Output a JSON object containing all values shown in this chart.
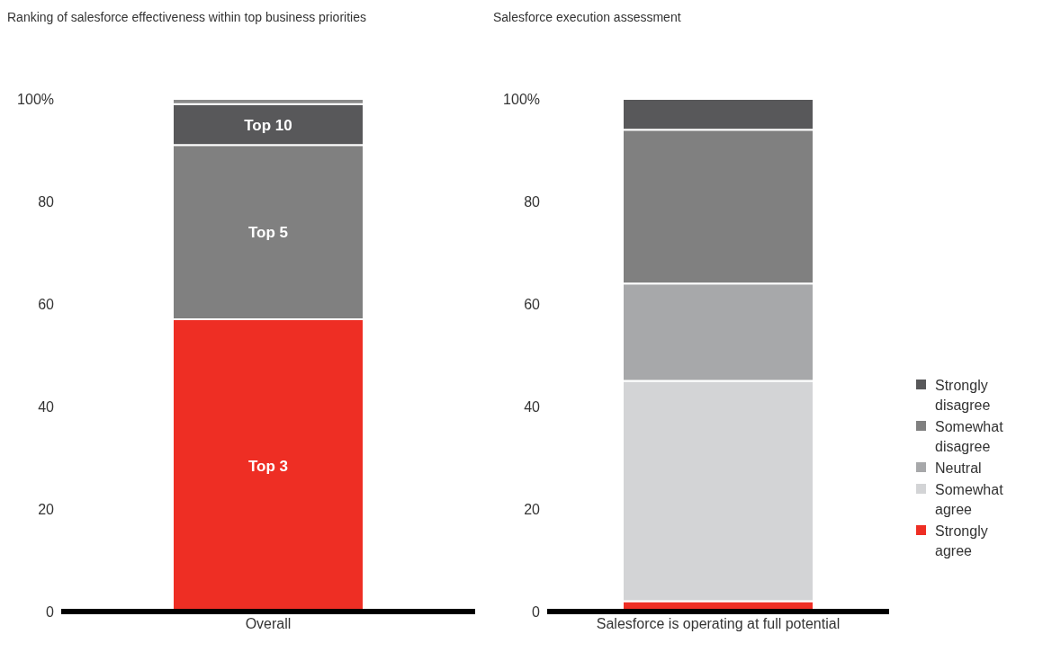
{
  "chart_data": [
    {
      "type": "bar",
      "title": "Ranking of salesforce effectiveness within top business priorities",
      "categories": [
        "Overall"
      ],
      "stacked": true,
      "legend": false,
      "grid": false,
      "ylim": [
        0,
        100
      ],
      "yticks": [
        0,
        20,
        40,
        60,
        80,
        {
          "value": 100,
          "label": "100%"
        }
      ],
      "series": [
        {
          "name": "Top 3",
          "color": "#ee2e24",
          "values": [
            57
          ]
        },
        {
          "name": "Top 5",
          "color": "#808080",
          "values": [
            34
          ]
        },
        {
          "name": "Top 10",
          "color": "#58585a",
          "values": [
            8
          ]
        },
        {
          "color": "#8a8a8a",
          "values": [
            1
          ]
        }
      ]
    },
    {
      "type": "bar",
      "title": "Salesforce execution assessment",
      "categories": [
        "Salesforce is operating at full potential"
      ],
      "stacked": true,
      "legend": "right",
      "grid": false,
      "ylim": [
        0,
        100
      ],
      "yticks": [
        0,
        20,
        40,
        60,
        80,
        {
          "value": 100,
          "label": "100%"
        }
      ],
      "series": [
        {
          "name": "Strongly agree",
          "color": "#ee2e24",
          "values": [
            2
          ]
        },
        {
          "name": "Somewhat agree",
          "color": "#d3d4d6",
          "values": [
            43
          ]
        },
        {
          "name": "Neutral",
          "color": "#a7a8aa",
          "values": [
            19
          ]
        },
        {
          "name": "Somewhat disagree",
          "color": "#808080",
          "values": [
            30
          ]
        },
        {
          "name": "Strongly disagree",
          "color": "#58585a",
          "values": [
            6
          ]
        }
      ]
    }
  ]
}
